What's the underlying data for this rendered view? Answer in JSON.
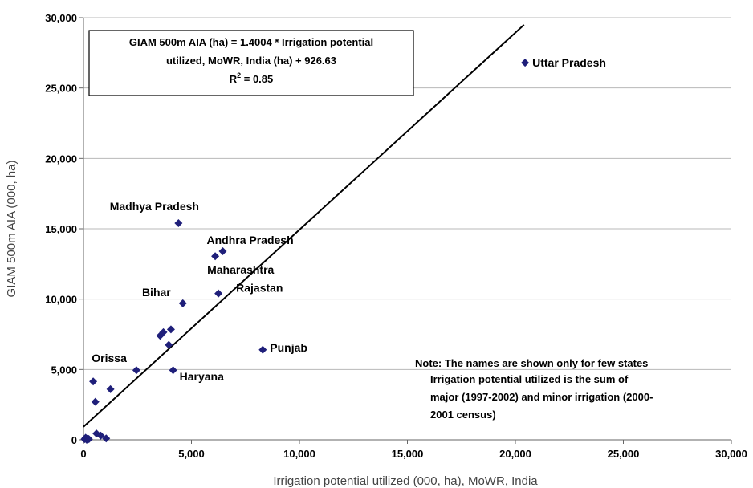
{
  "chart_data": {
    "type": "scatter",
    "title": "",
    "xlabel": "Irrigation potential utilized (000, ha), MoWR, India",
    "ylabel": "GIAM 500m AIA (000, ha)",
    "xlim": [
      0,
      30000
    ],
    "ylim": [
      0,
      30000
    ],
    "xticks": [
      0,
      5000,
      10000,
      15000,
      20000,
      25000,
      30000
    ],
    "yticks": [
      0,
      5000,
      10000,
      15000,
      20000,
      25000,
      30000
    ],
    "xtick_labels": [
      "0",
      "5,000",
      "10,000",
      "15,000",
      "20,000",
      "25,000",
      "30,000"
    ],
    "ytick_labels": [
      "0",
      "5,000",
      "10,000",
      "15,000",
      "20,000",
      "25,000",
      "30,000"
    ],
    "grid": "horizontal",
    "marker_color": "#1f1f7a",
    "line_color": "#000000",
    "points": [
      {
        "x": 20450,
        "y": 26800,
        "label": "Uttar Pradesh"
      },
      {
        "x": 4400,
        "y": 15400,
        "label": "Madhya Pradesh"
      },
      {
        "x": 6450,
        "y": 13400,
        "label": "Andhra Pradesh"
      },
      {
        "x": 6100,
        "y": 13050,
        "label": "Maharashtra"
      },
      {
        "x": 6250,
        "y": 10400,
        "label": "Rajastan"
      },
      {
        "x": 4600,
        "y": 9700,
        "label": "Bihar"
      },
      {
        "x": 8300,
        "y": 6400,
        "label": "Punjab"
      },
      {
        "x": 2450,
        "y": 4950,
        "label": "Orissa"
      },
      {
        "x": 4150,
        "y": 4950,
        "label": "Haryana"
      },
      {
        "x": 3550,
        "y": 7400,
        "label": ""
      },
      {
        "x": 3700,
        "y": 7650,
        "label": ""
      },
      {
        "x": 4050,
        "y": 7850,
        "label": ""
      },
      {
        "x": 3950,
        "y": 6750,
        "label": ""
      },
      {
        "x": 450,
        "y": 4150,
        "label": ""
      },
      {
        "x": 550,
        "y": 2700,
        "label": ""
      },
      {
        "x": 1250,
        "y": 3600,
        "label": ""
      },
      {
        "x": 600,
        "y": 450,
        "label": ""
      },
      {
        "x": 800,
        "y": 300,
        "label": ""
      },
      {
        "x": 1050,
        "y": 100,
        "label": ""
      },
      {
        "x": 50,
        "y": 50,
        "label": ""
      },
      {
        "x": 100,
        "y": 150,
        "label": ""
      },
      {
        "x": 150,
        "y": 0,
        "label": ""
      },
      {
        "x": 200,
        "y": 100,
        "label": ""
      },
      {
        "x": 250,
        "y": 50,
        "label": ""
      }
    ],
    "trendline": {
      "slope": 1.4004,
      "intercept": 926.63,
      "x_range": [
        0,
        20400
      ]
    },
    "annotation": {
      "line1": "GIAM 500m AIA (ha) = 1.4004 * Irrigation potential",
      "line2": "utilized, MoWR, India (ha) + 926.63",
      "r2_prefix": "R",
      "r2_sup": "2",
      "r2_value": " = 0.85"
    },
    "note": {
      "line1": "Note: The names are shown only for few states",
      "line2": "Irrigation potential utilized is the sum of",
      "line3": "major (1997-2002) and minor irrigation (2000-",
      "line4": "2001 census)"
    }
  }
}
